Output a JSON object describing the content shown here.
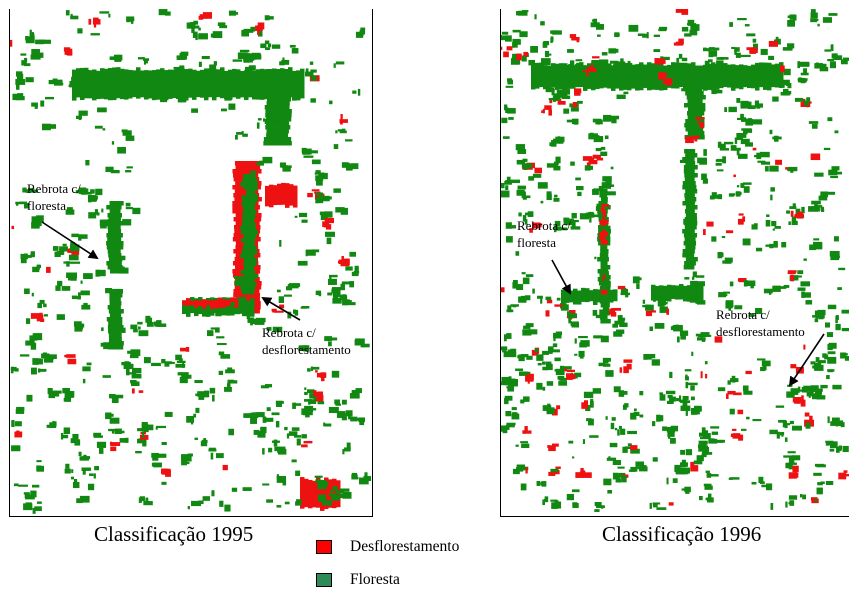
{
  "panels": {
    "left": {
      "caption": "Classificação 1995",
      "annotations": [
        {
          "line1": "Rebrota c/",
          "line2": "floresta"
        },
        {
          "line1": "Rebrota c/",
          "line2": "desflorestamento"
        }
      ]
    },
    "right": {
      "caption": "Classificação 1996",
      "annotations": [
        {
          "line1": "Rebrota c/",
          "line2": "floresta"
        },
        {
          "line1": "Rebrota c/",
          "line2": "desflorestamento"
        }
      ]
    }
  },
  "legend": [
    {
      "label": "Desflorestamento",
      "color": "#ff0000"
    },
    {
      "label": "Floresta",
      "color": "#2e8b57"
    }
  ],
  "colors": {
    "forest": "#118811",
    "deforestation": "#ee1111",
    "border": "#000000"
  }
}
